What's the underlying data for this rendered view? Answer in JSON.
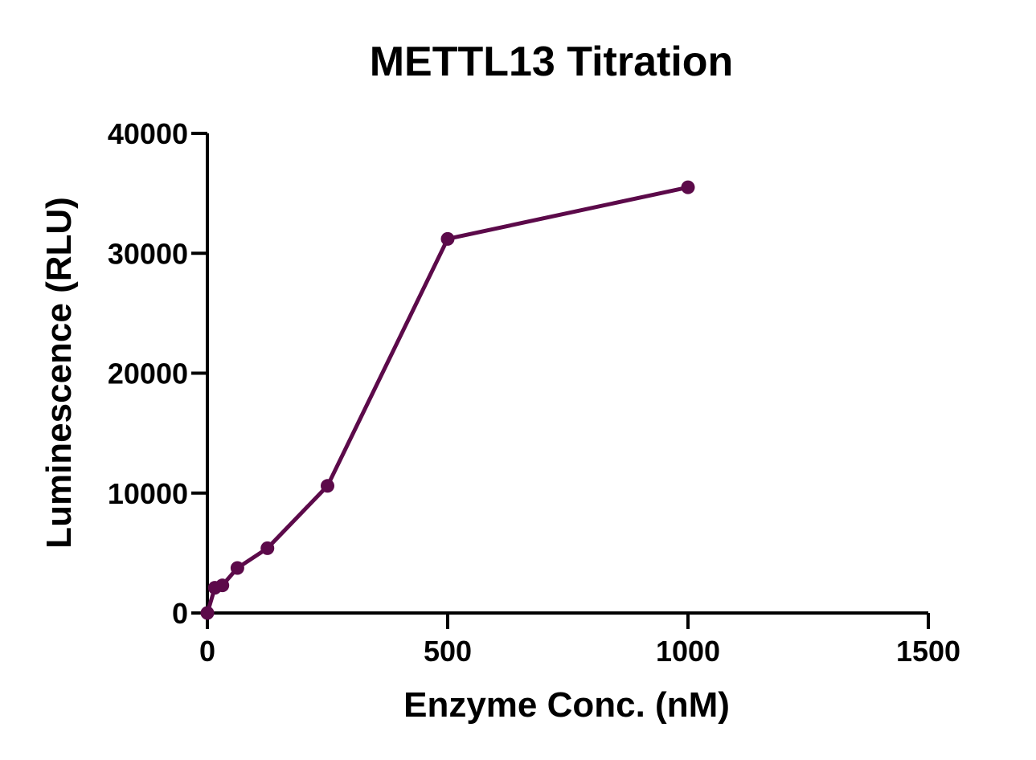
{
  "chart_data": {
    "type": "line",
    "title": "METTL13 Titration",
    "xlabel": "Enzyme Conc. (nM)",
    "ylabel": "Luminescence (RLU)",
    "xlim": [
      0,
      1500
    ],
    "ylim": [
      0,
      40000
    ],
    "x_ticks": [
      0,
      500,
      1000,
      1500
    ],
    "y_ticks": [
      0,
      10000,
      20000,
      30000,
      40000
    ],
    "grid": false,
    "legend": "none",
    "series": [
      {
        "color": "#5c0a4a",
        "points": [
          {
            "x": 0,
            "y": 0
          },
          {
            "x": 15.6,
            "y": 2100
          },
          {
            "x": 31.25,
            "y": 2300
          },
          {
            "x": 62.5,
            "y": 3750
          },
          {
            "x": 125,
            "y": 5400
          },
          {
            "x": 250,
            "y": 10600
          },
          {
            "x": 500,
            "y": 31200
          },
          {
            "x": 1000,
            "y": 35500
          }
        ]
      }
    ]
  }
}
